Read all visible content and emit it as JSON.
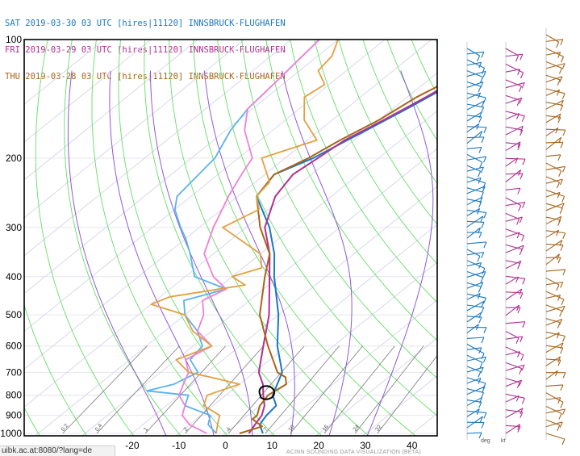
{
  "legend": [
    {
      "text": "SAT 2019-03-30 03 UTC [hires|11120] INNSBRUCK-FLUGHAFEN",
      "color": "#1a78c2"
    },
    {
      "text": "FRI 2019-03-29 03 UTC [hires|11120] INNSBRUCK-FLUGHAFEN",
      "color": "#b03090"
    },
    {
      "text": "THU 2019-03-28 03 UTC [hires|11120] INNSBRUCK-FLUGHAFEN",
      "color": "#a8651a"
    }
  ],
  "url_text": "uibk.ac.at:8080/?lang=de",
  "footer_text": "ACINN SOUNDING DATA VISUALIZATION (BETA)",
  "wind_labels": {
    "deg": "deg",
    "kt": "kt"
  },
  "colors": {
    "sat": "#1a78c2",
    "sat_dew": "#5ab2ee",
    "fri": "#b03090",
    "fri_dew": "#f080d8",
    "thu": "#a8651a",
    "thu_dew": "#e3a040",
    "isotherm": "#d8d8ec",
    "dry_adiabat": "#66dd66",
    "moist_adiabat": "#9058d8",
    "mixing_ratio": "#7a7a7a",
    "parcel": "#000000"
  },
  "chart_data": {
    "type": "line",
    "chart_kind": "skew-T log-P sounding",
    "xlabel": "",
    "ylabel": "",
    "x_range": [
      -29,
      46
    ],
    "y_range": [
      1000,
      100
    ],
    "y_scale": "log",
    "x_ticks": [
      -20,
      -10,
      0,
      10,
      20,
      30,
      40
    ],
    "y_ticks": [
      100,
      200,
      300,
      400,
      500,
      600,
      700,
      800,
      900,
      1000
    ],
    "mixing_ratio_labels": [
      "0.2",
      "0.4",
      "1",
      "2",
      "4",
      "7",
      "10",
      "16",
      "24",
      "32"
    ],
    "grid": true,
    "series": [
      {
        "name": "SAT 2019-03-30 03 UTC",
        "kind": "temperature",
        "points": [
          [
            1000,
            8
          ],
          [
            950,
            5
          ],
          [
            900,
            4
          ],
          [
            850,
            3.5
          ],
          [
            800,
            0
          ],
          [
            700,
            -4
          ],
          [
            600,
            -12
          ],
          [
            500,
            -20
          ],
          [
            400,
            -31
          ],
          [
            350,
            -37
          ],
          [
            300,
            -45
          ],
          [
            250,
            -56
          ],
          [
            220,
            -58
          ],
          [
            200,
            -54
          ],
          [
            170,
            -50
          ],
          [
            150,
            -47
          ],
          [
            130,
            -44
          ],
          [
            115,
            -41
          ],
          [
            100,
            -38
          ]
        ]
      },
      {
        "name": "SAT 2019-03-30 03 UTC",
        "kind": "dewpoint",
        "points": [
          [
            1000,
            -2
          ],
          [
            950,
            -6
          ],
          [
            900,
            -8
          ],
          [
            850,
            -16
          ],
          [
            800,
            -18
          ],
          [
            780,
            -28
          ],
          [
            750,
            -24
          ],
          [
            700,
            -22
          ],
          [
            650,
            -27
          ],
          [
            600,
            -28
          ],
          [
            550,
            -33
          ],
          [
            500,
            -40
          ],
          [
            460,
            -44
          ],
          [
            430,
            -38
          ],
          [
            400,
            -48
          ],
          [
            350,
            -55
          ],
          [
            320,
            -60
          ],
          [
            300,
            -64
          ],
          [
            270,
            -70
          ],
          [
            250,
            -73
          ],
          [
            200,
            -75
          ],
          [
            170,
            -79
          ],
          [
            150,
            -81
          ],
          [
            130,
            -82
          ],
          [
            100,
            -84
          ]
        ]
      },
      {
        "name": "FRI 2019-03-29 03 UTC",
        "kind": "temperature",
        "points": [
          [
            1000,
            5
          ],
          [
            950,
            4
          ],
          [
            900,
            3
          ],
          [
            850,
            1
          ],
          [
            800,
            -2
          ],
          [
            750,
            -5
          ],
          [
            700,
            -9
          ],
          [
            600,
            -15
          ],
          [
            500,
            -22
          ],
          [
            400,
            -32
          ],
          [
            350,
            -38
          ],
          [
            300,
            -46
          ],
          [
            250,
            -52
          ],
          [
            220,
            -54
          ],
          [
            200,
            -53
          ],
          [
            180,
            -52
          ],
          [
            160,
            -49
          ],
          [
            140,
            -46
          ],
          [
            120,
            -43
          ],
          [
            100,
            -40
          ]
        ]
      },
      {
        "name": "FRI 2019-03-29 03 UTC",
        "kind": "dewpoint",
        "points": [
          [
            1000,
            -4
          ],
          [
            950,
            -10
          ],
          [
            900,
            -14
          ],
          [
            850,
            -16
          ],
          [
            800,
            -20
          ],
          [
            750,
            -22
          ],
          [
            700,
            -24
          ],
          [
            650,
            -28
          ],
          [
            600,
            -26
          ],
          [
            550,
            -33
          ],
          [
            500,
            -36
          ],
          [
            460,
            -40
          ],
          [
            430,
            -38
          ],
          [
            400,
            -44
          ],
          [
            350,
            -52
          ],
          [
            300,
            -57
          ],
          [
            250,
            -62
          ],
          [
            220,
            -65
          ],
          [
            200,
            -67
          ],
          [
            170,
            -76
          ],
          [
            150,
            -81
          ],
          [
            130,
            -82
          ],
          [
            100,
            -84
          ]
        ]
      },
      {
        "name": "THU 2019-03-28 03 UTC",
        "kind": "temperature",
        "points": [
          [
            1000,
            3
          ],
          [
            960,
            6
          ],
          [
            920,
            2
          ],
          [
            900,
            2
          ],
          [
            850,
            0
          ],
          [
            800,
            -1
          ],
          [
            750,
            0
          ],
          [
            720,
            -2
          ],
          [
            700,
            -5
          ],
          [
            600,
            -14
          ],
          [
            500,
            -24
          ],
          [
            400,
            -33
          ],
          [
            350,
            -38
          ],
          [
            300,
            -47
          ],
          [
            250,
            -56
          ],
          [
            220,
            -58
          ],
          [
            200,
            -55
          ],
          [
            180,
            -53
          ],
          [
            160,
            -50
          ],
          [
            140,
            -48
          ],
          [
            120,
            -44
          ],
          [
            100,
            -40
          ]
        ]
      },
      {
        "name": "THU 2019-03-28 03 UTC",
        "kind": "dewpoint",
        "points": [
          [
            1000,
            -2
          ],
          [
            950,
            -4
          ],
          [
            900,
            -6
          ],
          [
            850,
            -12
          ],
          [
            800,
            -14
          ],
          [
            750,
            -10
          ],
          [
            720,
            -18
          ],
          [
            700,
            -24
          ],
          [
            650,
            -30
          ],
          [
            600,
            -26
          ],
          [
            550,
            -34
          ],
          [
            500,
            -40
          ],
          [
            470,
            -50
          ],
          [
            450,
            -48
          ],
          [
            420,
            -35
          ],
          [
            400,
            -40
          ],
          [
            380,
            -36
          ],
          [
            350,
            -40
          ],
          [
            300,
            -55
          ],
          [
            270,
            -52
          ],
          [
            250,
            -56
          ],
          [
            230,
            -57
          ],
          [
            200,
            -65
          ],
          [
            180,
            -58
          ],
          [
            160,
            -66
          ],
          [
            140,
            -72
          ],
          [
            130,
            -71
          ],
          [
            120,
            -76
          ],
          [
            110,
            -77
          ],
          [
            100,
            -80
          ]
        ]
      }
    ]
  }
}
